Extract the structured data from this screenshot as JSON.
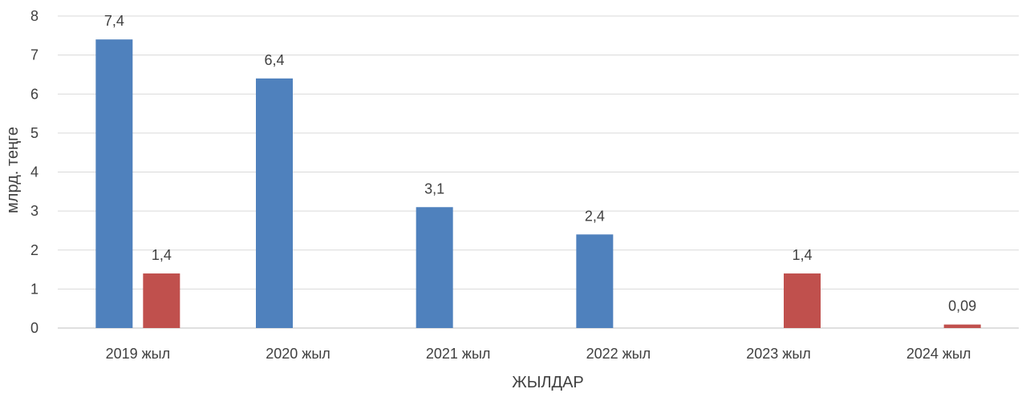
{
  "chart_data": {
    "type": "bar",
    "categories": [
      "2019 жыл",
      "2020 жыл",
      "2021 жыл",
      "2022 жыл",
      "2023 жыл",
      "2024 жыл"
    ],
    "series": [
      {
        "color": "#4F81BD",
        "values": [
          7.4,
          6.4,
          3.1,
          2.4,
          null,
          null
        ],
        "labels": [
          "7,4",
          "6,4",
          "3,1",
          "2,4",
          "",
          ""
        ]
      },
      {
        "color": "#C0504D",
        "values": [
          1.4,
          null,
          null,
          null,
          1.4,
          0.09
        ],
        "labels": [
          "1,4",
          "",
          "",
          "",
          "1,4",
          "0,09"
        ]
      }
    ],
    "xlabel": "ЖЫЛДАР",
    "ylabel": "млрд. теңге",
    "ylim": [
      0,
      8
    ],
    "yticks": [
      "0",
      "1",
      "2",
      "3",
      "4",
      "5",
      "6",
      "7",
      "8"
    ],
    "grid": true,
    "legend": "none"
  }
}
